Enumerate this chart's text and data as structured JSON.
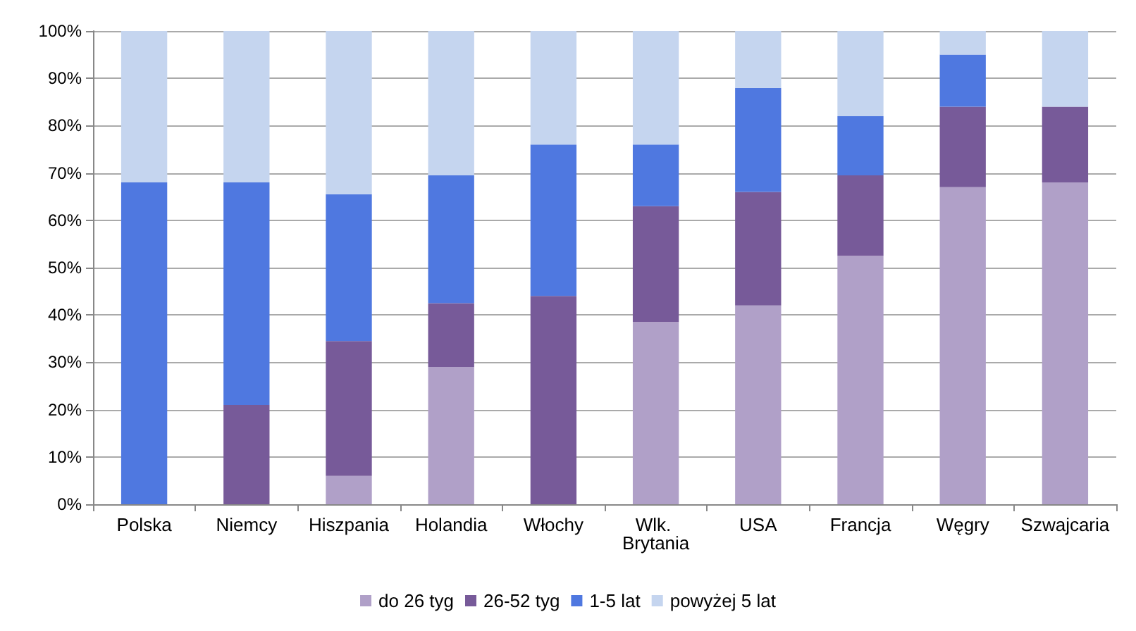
{
  "chart_data": {
    "type": "bar",
    "stacked": true,
    "categories": [
      "Polska",
      "Niemcy",
      "Hiszpania",
      "Holandia",
      "Włochy",
      "Wlk. Brytania",
      "USA",
      "Francja",
      "Węgry",
      "Szwajcaria"
    ],
    "series": [
      {
        "name": "do 26 tyg",
        "color": "#b0a0c8",
        "values": [
          0,
          0,
          6,
          29,
          0,
          38.5,
          42,
          52.5,
          67,
          68
        ]
      },
      {
        "name": "26-52 tyg",
        "color": "#775a99",
        "values": [
          0,
          21,
          28.5,
          13.5,
          44,
          24.5,
          24,
          17,
          17,
          16
        ]
      },
      {
        "name": "1-5 lat",
        "color": "#4f78e0",
        "values": [
          68,
          47,
          31,
          27,
          32,
          13,
          22,
          12.5,
          11,
          0
        ]
      },
      {
        "name": "powyżej 5 lat",
        "color": "#c5d5ef",
        "values": [
          32,
          32,
          34.5,
          30.5,
          24,
          24,
          12,
          18,
          5,
          16
        ]
      }
    ],
    "ylim": [
      0,
      100
    ],
    "yticks": [
      {
        "value": 0,
        "label": "0%"
      },
      {
        "value": 10,
        "label": "10%"
      },
      {
        "value": 20,
        "label": "20%"
      },
      {
        "value": 30,
        "label": "30%"
      },
      {
        "value": 40,
        "label": "40%"
      },
      {
        "value": 50,
        "label": "50%"
      },
      {
        "value": 60,
        "label": "60%"
      },
      {
        "value": 70,
        "label": "70%"
      },
      {
        "value": 80,
        "label": "80%"
      },
      {
        "value": 90,
        "label": "90%"
      },
      {
        "value": 100,
        "label": "100%"
      }
    ],
    "grid": "y",
    "legend": "bottom"
  }
}
